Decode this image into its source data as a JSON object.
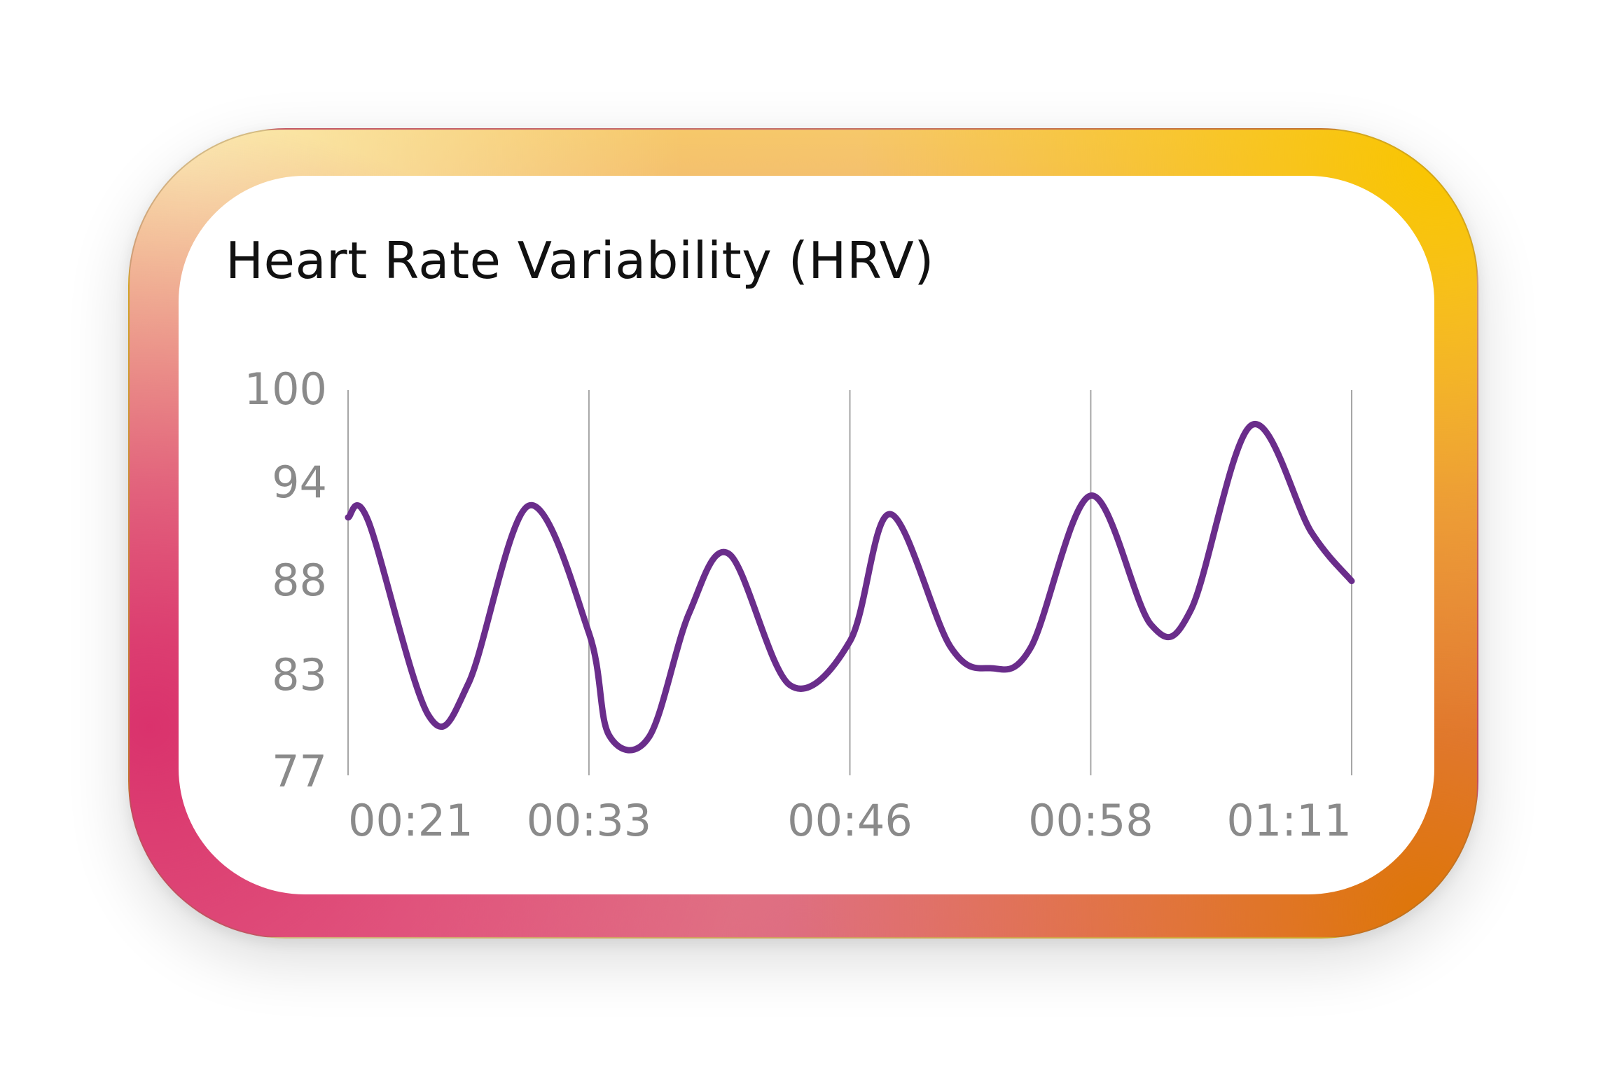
{
  "chart_data": {
    "type": "line",
    "title": "Heart Rate Variability (HRV)",
    "xlabel": "",
    "ylabel": "",
    "x_ticks": [
      "00:21",
      "00:33",
      "00:46",
      "00:58",
      "01:11"
    ],
    "y_ticks": [
      "100",
      "94",
      "88",
      "83",
      "77"
    ],
    "ylim": [
      77,
      100
    ],
    "grid": "vertical",
    "colors": {
      "line": "#6a2d8b",
      "grid": "#a6a6a6",
      "ticks": "#8a8a8a"
    },
    "series": [
      {
        "x": [
          "00:21",
          "00:22",
          "00:25",
          "00:27",
          "00:30",
          "00:33",
          "00:34",
          "00:36",
          "00:38",
          "00:40",
          "00:43",
          "00:46",
          "00:48",
          "00:51",
          "00:53",
          "00:55",
          "00:58",
          "01:01",
          "01:03",
          "01:06",
          "01:09",
          "01:11"
        ],
        "values": [
          92.4,
          92.2,
          80.6,
          82.5,
          93.1,
          85.5,
          79.4,
          79.3,
          86.7,
          90.2,
          82.4,
          85.0,
          92.6,
          84.7,
          83.4,
          84.6,
          93.7,
          86.0,
          86.9,
          97.9,
          91.5,
          88.6
        ]
      }
    ]
  }
}
